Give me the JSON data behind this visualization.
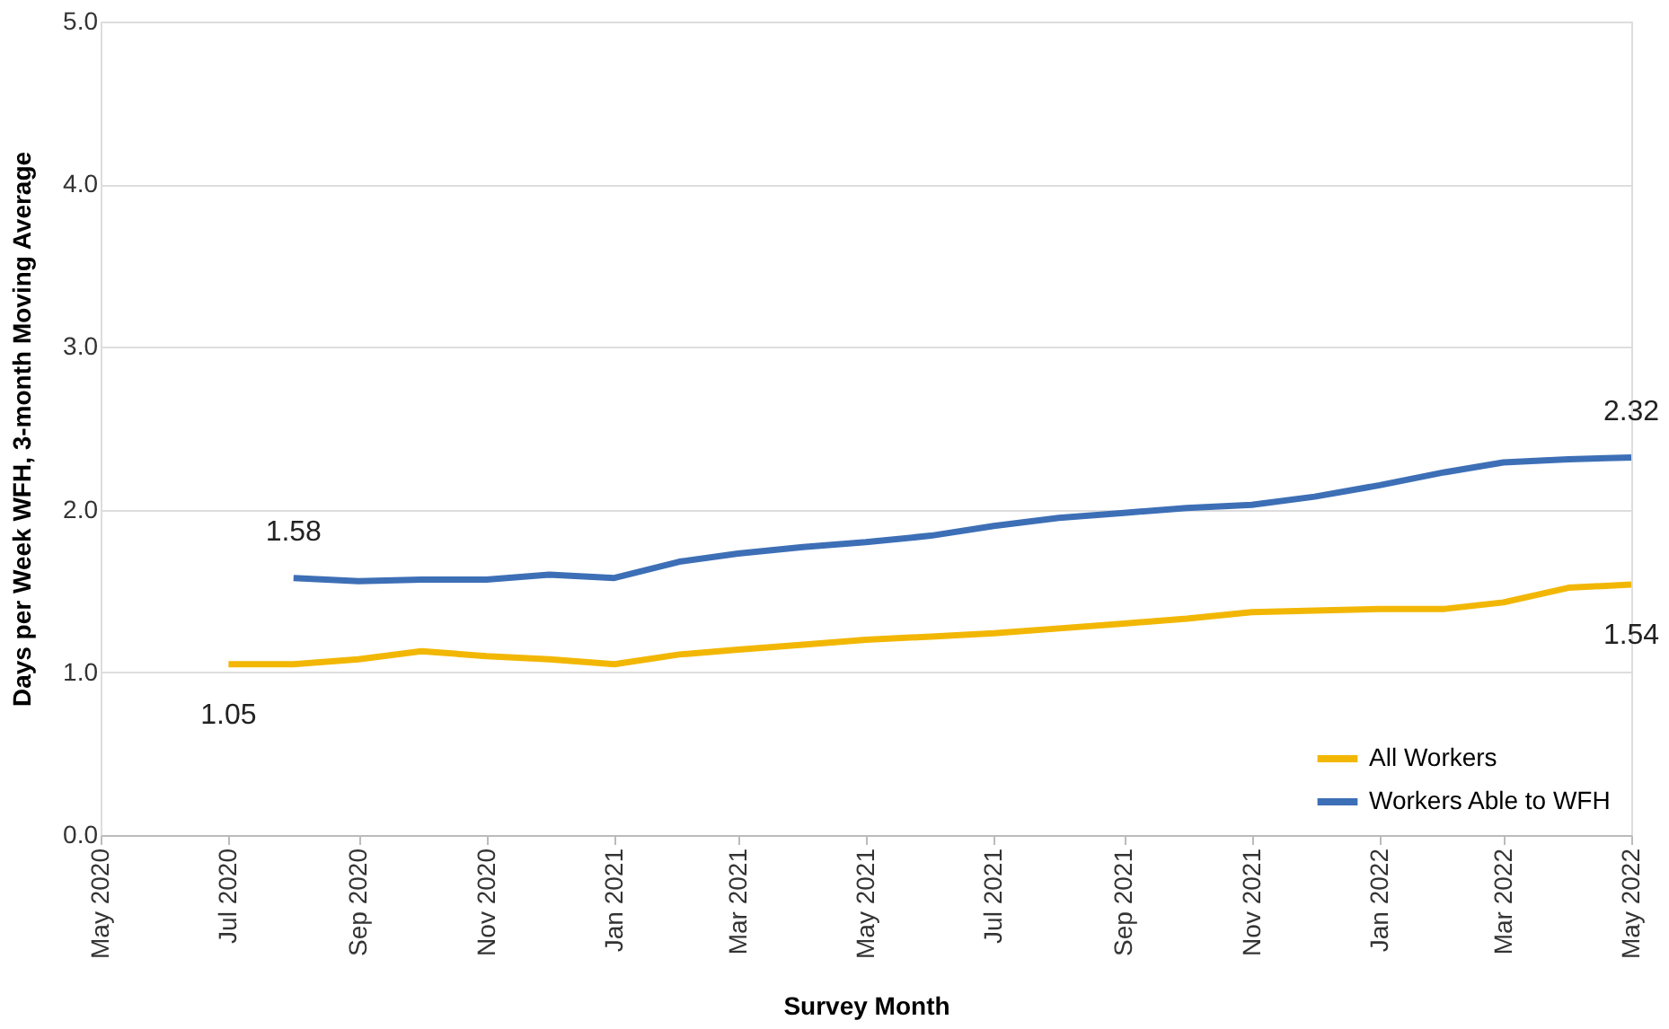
{
  "chart_data": {
    "type": "line",
    "xlabel": "Survey Month",
    "ylabel": "Days per Week WFH, 3-month Moving Average",
    "xlim": [
      "2020-05",
      "2022-05"
    ],
    "xticks": [
      {
        "value": "2020-05",
        "label": "May 2020"
      },
      {
        "value": "2020-07",
        "label": "Jul 2020"
      },
      {
        "value": "2020-09",
        "label": "Sep 2020"
      },
      {
        "value": "2020-11",
        "label": "Nov 2020"
      },
      {
        "value": "2021-01",
        "label": "Jan 2021"
      },
      {
        "value": "2021-03",
        "label": "Mar 2021"
      },
      {
        "value": "2021-05",
        "label": "May 2021"
      },
      {
        "value": "2021-07",
        "label": "Jul 2021"
      },
      {
        "value": "2021-09",
        "label": "Sep 2021"
      },
      {
        "value": "2021-11",
        "label": "Nov 2021"
      },
      {
        "value": "2022-01",
        "label": "Jan 2022"
      },
      {
        "value": "2022-03",
        "label": "Mar 2022"
      },
      {
        "value": "2022-05",
        "label": "May 2022"
      }
    ],
    "ylim": [
      0,
      5
    ],
    "yticks": [
      {
        "value": 0,
        "label": "0.0"
      },
      {
        "value": 1,
        "label": "1.0"
      },
      {
        "value": 2,
        "label": "2.0"
      },
      {
        "value": 3,
        "label": "3.0"
      },
      {
        "value": 4,
        "label": "4.0"
      },
      {
        "value": 5,
        "label": "5.0"
      }
    ],
    "grid": "y",
    "legend": "bottom right",
    "marker": "none",
    "line_style": "solid",
    "series": [
      {
        "name": "All Workers",
        "color": "#f2b705",
        "x": [
          "2020-07",
          "2020-08",
          "2020-09",
          "2020-10",
          "2020-11",
          "2020-12",
          "2021-01",
          "2021-02",
          "2021-03",
          "2021-04",
          "2021-05",
          "2021-06",
          "2021-07",
          "2021-08",
          "2021-09",
          "2021-10",
          "2021-11",
          "2021-12",
          "2022-01",
          "2022-02",
          "2022-03",
          "2022-04",
          "2022-05"
        ],
        "values": [
          1.05,
          1.05,
          1.08,
          1.13,
          1.1,
          1.08,
          1.05,
          1.11,
          1.14,
          1.17,
          1.2,
          1.22,
          1.24,
          1.27,
          1.3,
          1.33,
          1.37,
          1.38,
          1.39,
          1.39,
          1.43,
          1.52,
          1.54
        ],
        "value_labels": [
          "1.05",
          null,
          null,
          null,
          null,
          null,
          null,
          null,
          null,
          null,
          null,
          null,
          null,
          null,
          null,
          null,
          null,
          null,
          null,
          null,
          null,
          null,
          "1.54"
        ]
      },
      {
        "name": "Workers Able to WFH",
        "color": "#3d6fb6",
        "x": [
          "2020-08",
          "2020-09",
          "2020-10",
          "2020-11",
          "2020-12",
          "2021-01",
          "2021-02",
          "2021-03",
          "2021-04",
          "2021-05",
          "2021-06",
          "2021-07",
          "2021-08",
          "2021-09",
          "2021-10",
          "2021-11",
          "2021-12",
          "2022-01",
          "2022-02",
          "2022-03",
          "2022-04",
          "2022-05"
        ],
        "values": [
          1.58,
          1.56,
          1.57,
          1.57,
          1.6,
          1.58,
          1.68,
          1.73,
          1.77,
          1.8,
          1.84,
          1.9,
          1.95,
          1.98,
          2.01,
          2.03,
          2.08,
          2.15,
          2.23,
          2.29,
          2.31,
          2.32
        ],
        "value_labels": [
          "1.58",
          null,
          null,
          null,
          null,
          null,
          null,
          null,
          null,
          null,
          null,
          null,
          null,
          null,
          null,
          null,
          null,
          null,
          null,
          null,
          null,
          "2.32"
        ]
      }
    ]
  }
}
